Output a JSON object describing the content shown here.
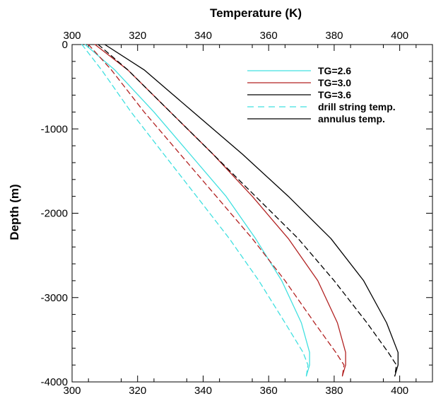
{
  "chart_data": {
    "type": "line",
    "xlabel": "Temperature (K)",
    "ylabel": "Depth (m)",
    "xlim": [
      300,
      410
    ],
    "ylim": [
      -4000,
      0
    ],
    "x_ticks": [
      300,
      320,
      340,
      360,
      380,
      400
    ],
    "y_ticks": [
      0,
      -1000,
      -2000,
      -3000,
      -4000
    ],
    "top_axis_labels": [
      "300",
      "320",
      "340",
      "360",
      "380",
      "400"
    ],
    "bottom_axis_labels": [
      "300",
      "320",
      "340",
      "360",
      "380",
      "400"
    ],
    "left_axis_labels": [
      "0",
      "-1000",
      "-2000",
      "-3000",
      "-4000"
    ],
    "grid": false,
    "legend_position": "top-right",
    "legend": [
      {
        "label": "TG=2.6",
        "color": "#40E0E0",
        "dash": "solid"
      },
      {
        "label": "TG=3.0",
        "color": "#B22222",
        "dash": "solid"
      },
      {
        "label": "TG=3.6",
        "color": "#000000",
        "dash": "solid"
      },
      {
        "label": "drill string temp.",
        "color": "#40E0E0",
        "dash": "dashed"
      },
      {
        "label": "annulus temp.",
        "color": "#000000",
        "dash": "solid"
      }
    ],
    "series": [
      {
        "group": "TG=2.6",
        "kind": "annulus",
        "color": "#40E0E0",
        "dash": "solid",
        "x": [
          304,
          313,
          325,
          336,
          347,
          356,
          364,
          370,
          372.5,
          372.5,
          371.5
        ],
        "y": [
          0,
          -300,
          -800,
          -1300,
          -1800,
          -2300,
          -2800,
          -3300,
          -3650,
          -3800,
          -3930
        ]
      },
      {
        "group": "TG=2.6",
        "kind": "drill string",
        "color": "#40E0E0",
        "dash": "dashed",
        "x": [
          303,
          309,
          318,
          328,
          338,
          348,
          357,
          365,
          370.5,
          372,
          371.5
        ],
        "y": [
          0,
          -300,
          -800,
          -1300,
          -1800,
          -2300,
          -2800,
          -3300,
          -3650,
          -3800,
          -3930
        ]
      },
      {
        "group": "TG=3.0",
        "kind": "annulus",
        "color": "#B22222",
        "dash": "solid",
        "x": [
          307,
          317,
          330,
          343,
          355,
          366,
          375,
          381,
          383.5,
          383.5,
          382.5
        ],
        "y": [
          0,
          -300,
          -800,
          -1300,
          -1800,
          -2300,
          -2800,
          -3300,
          -3650,
          -3800,
          -3930
        ]
      },
      {
        "group": "TG=3.0",
        "kind": "drill string",
        "color": "#B22222",
        "dash": "dashed",
        "x": [
          305,
          312,
          322,
          333,
          344,
          355,
          365,
          374,
          380.5,
          383,
          382.5
        ],
        "y": [
          0,
          -300,
          -800,
          -1300,
          -1800,
          -2300,
          -2800,
          -3300,
          -3650,
          -3800,
          -3930
        ]
      },
      {
        "group": "TG=3.6",
        "kind": "annulus",
        "color": "#000000",
        "dash": "solid",
        "x": [
          310,
          322,
          337,
          352,
          366,
          379,
          389,
          396,
          399.5,
          399.5,
          398.5
        ],
        "y": [
          0,
          -300,
          -800,
          -1300,
          -1800,
          -2300,
          -2800,
          -3300,
          -3650,
          -3800,
          -3930
        ]
      },
      {
        "group": "TG=3.6",
        "kind": "drill string",
        "color": "#000000",
        "dash": "dashed",
        "x": [
          308,
          317,
          330,
          343,
          356,
          369,
          380,
          390,
          396.5,
          399,
          398.5
        ],
        "y": [
          0,
          -300,
          -800,
          -1300,
          -1800,
          -2300,
          -2800,
          -3300,
          -3650,
          -3800,
          -3930
        ]
      }
    ]
  }
}
